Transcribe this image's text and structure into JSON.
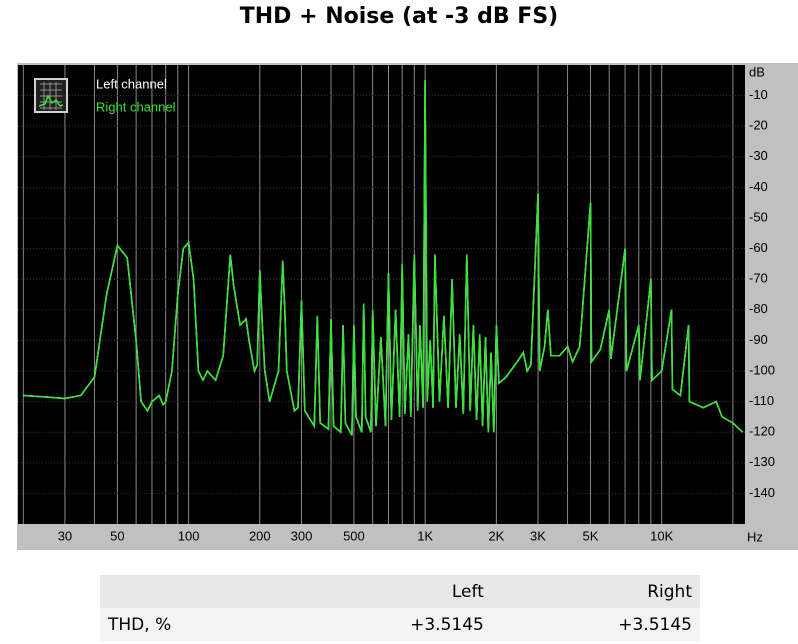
{
  "chart_data": {
    "type": "line",
    "title": "THD + Noise (at -3 dB FS)",
    "x_label": "Hz",
    "y_label": "dB",
    "log_x": true,
    "grid": true,
    "legend": "top-left",
    "xlim": [
      19,
      22500
    ],
    "ylim": [
      -150,
      0
    ],
    "xticks": [
      30,
      50,
      100,
      200,
      300,
      500,
      {
        "value": 1000,
        "label": "1K"
      },
      {
        "value": 2000,
        "label": "2K"
      },
      {
        "value": 3000,
        "label": "3K"
      },
      {
        "value": 5000,
        "label": "5K"
      },
      {
        "value": 10000,
        "label": "10K"
      }
    ],
    "xgrid": [
      20,
      30,
      40,
      50,
      60,
      70,
      80,
      90,
      100,
      200,
      300,
      400,
      500,
      600,
      700,
      800,
      900,
      1000,
      2000,
      3000,
      4000,
      5000,
      6000,
      7000,
      8000,
      9000,
      10000,
      20000
    ],
    "yticks": [
      -10,
      -20,
      -30,
      -40,
      -50,
      -60,
      -70,
      -80,
      -90,
      -100,
      -110,
      -120,
      -130,
      -140
    ],
    "x": [
      20,
      25,
      30,
      35,
      40,
      45,
      50,
      55,
      60,
      63,
      67,
      70,
      75,
      78,
      80,
      85,
      90,
      95,
      100,
      105,
      110,
      115,
      120,
      130,
      140,
      150,
      155,
      165,
      175,
      180,
      190,
      195,
      200,
      205,
      210,
      220,
      240,
      250,
      255,
      260,
      280,
      290,
      300,
      310,
      340,
      350,
      360,
      390,
      400,
      410,
      440,
      450,
      460,
      490,
      500,
      510,
      540,
      550,
      560,
      590,
      600,
      620,
      650,
      680,
      700,
      720,
      750,
      780,
      800,
      820,
      850,
      870,
      900,
      930,
      950,
      980,
      1000,
      1020,
      1050,
      1080,
      1100,
      1150,
      1200,
      1250,
      1300,
      1350,
      1400,
      1450,
      1500,
      1550,
      1600,
      1650,
      1700,
      1750,
      1800,
      1850,
      1900,
      1950,
      2000,
      2050,
      2200,
      2500,
      2600,
      2700,
      2800,
      3000,
      3050,
      3200,
      3300,
      3400,
      3700,
      4000,
      4200,
      4500,
      5000,
      5050,
      5500,
      6000,
      6100,
      7000,
      7100,
      8000,
      8100,
      9000,
      9100,
      10000,
      11000,
      11100,
      12000,
      13000,
      13100,
      15000,
      17000,
      18000,
      20000,
      22000
    ],
    "series": [
      {
        "name": "Left channel",
        "color": "#ffffff",
        "values": [
          -108,
          -108.5,
          -109,
          -108,
          -102,
          -75,
          -59,
          -63,
          -90,
          -110,
          -113,
          -110,
          -108,
          -111,
          -110,
          -100,
          -75,
          -60,
          -58,
          -70,
          -100,
          -103,
          -100,
          -103,
          -95,
          -62,
          -72,
          -85,
          -83,
          -90,
          -100,
          -98,
          -67,
          -85,
          -100,
          -110,
          -100,
          -64,
          -80,
          -100,
          -113,
          -112,
          -77,
          -113,
          -118,
          -82,
          -117,
          -119,
          -83,
          -118,
          -120,
          -85,
          -117,
          -121,
          -85,
          -115,
          -120,
          -78,
          -115,
          -120,
          -80,
          -118,
          -89,
          -118,
          -68,
          -116,
          -80,
          -115,
          -65,
          -114,
          -88,
          -115,
          -62,
          -113,
          -85,
          -112,
          -5,
          -110,
          -90,
          -112,
          -62,
          -110,
          -82,
          -112,
          -70,
          -112,
          -88,
          -114,
          -62,
          -113,
          -85,
          -116,
          -88,
          -118,
          -89,
          -120,
          -94,
          -120,
          -85,
          -104,
          -102,
          -96,
          -94,
          -100,
          -98,
          -42,
          -100,
          -92,
          -80,
          -95,
          -95,
          -92,
          -97,
          -92,
          -45,
          -97,
          -93,
          -80,
          -96,
          -60,
          -100,
          -85,
          -103,
          -70,
          -103,
          -100,
          -80,
          -106,
          -108,
          -85,
          -110,
          -112,
          -110,
          -115,
          -117,
          -120
        ]
      },
      {
        "name": "Right channel",
        "color": "#33e533",
        "values": [
          -108,
          -108.5,
          -109,
          -108,
          -102,
          -75,
          -59,
          -63,
          -90,
          -110,
          -113,
          -110,
          -108,
          -111,
          -110,
          -100,
          -75,
          -60,
          -58,
          -70,
          -100,
          -103,
          -100,
          -103,
          -95,
          -62,
          -72,
          -85,
          -83,
          -90,
          -100,
          -98,
          -67,
          -85,
          -100,
          -110,
          -100,
          -64,
          -80,
          -100,
          -113,
          -112,
          -77,
          -113,
          -118,
          -82,
          -117,
          -119,
          -83,
          -118,
          -120,
          -85,
          -117,
          -121,
          -85,
          -115,
          -120,
          -78,
          -115,
          -120,
          -80,
          -118,
          -89,
          -118,
          -68,
          -116,
          -80,
          -115,
          -65,
          -114,
          -88,
          -115,
          -62,
          -113,
          -85,
          -112,
          -5,
          -110,
          -90,
          -112,
          -62,
          -110,
          -82,
          -112,
          -70,
          -112,
          -88,
          -114,
          -62,
          -113,
          -85,
          -116,
          -88,
          -118,
          -89,
          -120,
          -94,
          -120,
          -85,
          -104,
          -102,
          -96,
          -94,
          -100,
          -98,
          -42,
          -100,
          -92,
          -80,
          -95,
          -95,
          -92,
          -97,
          -92,
          -45,
          -97,
          -93,
          -80,
          -96,
          -60,
          -100,
          -85,
          -103,
          -70,
          -103,
          -100,
          -80,
          -106,
          -108,
          -85,
          -110,
          -112,
          -110,
          -115,
          -117,
          -120
        ]
      }
    ]
  },
  "table": {
    "columns": [
      "Left",
      "Right"
    ],
    "rows": [
      {
        "label": "THD, %",
        "values": [
          "+3.5145",
          "+3.5145"
        ]
      }
    ]
  }
}
